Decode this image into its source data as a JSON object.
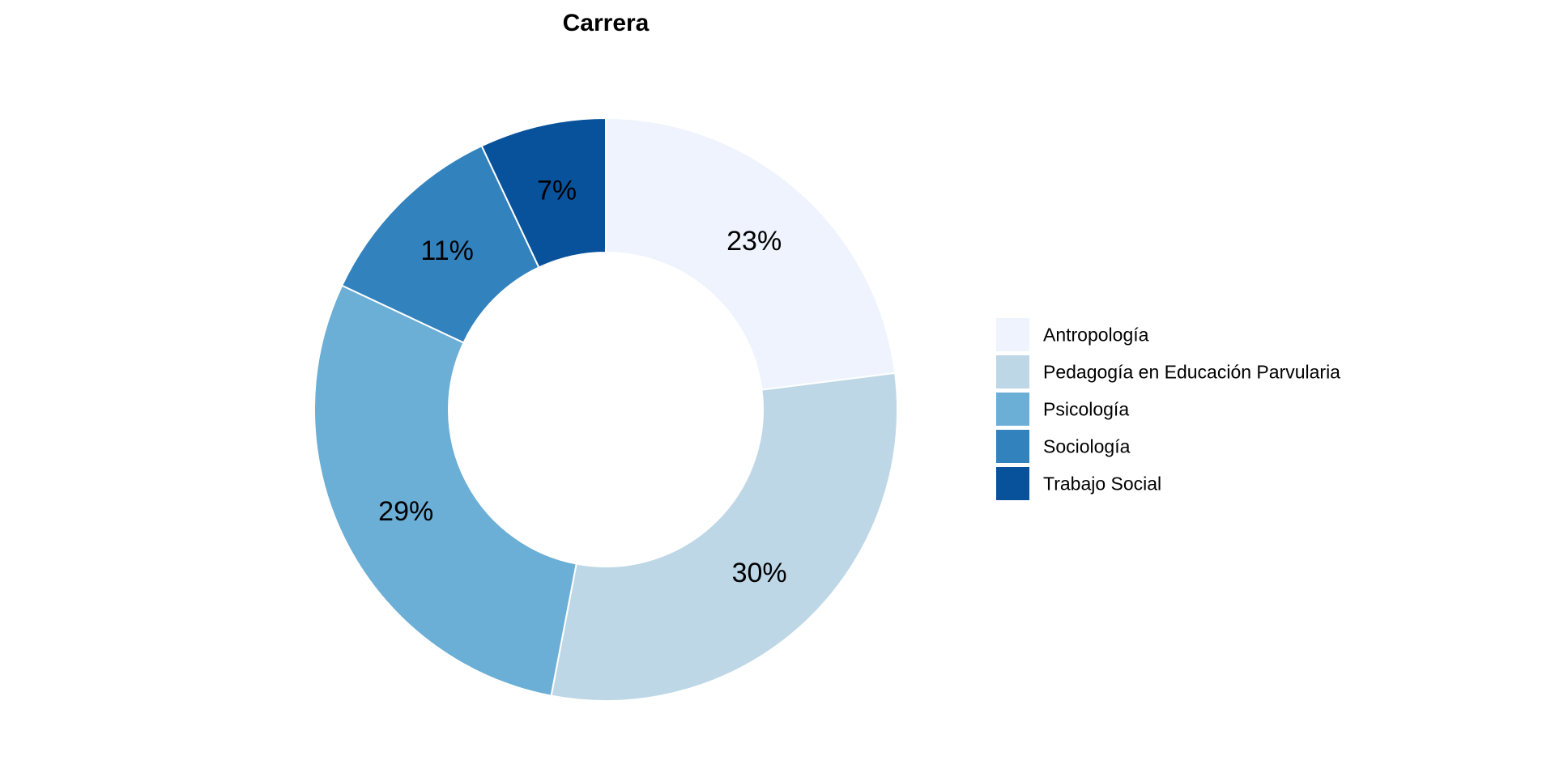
{
  "chart_data": {
    "type": "pie",
    "donut": true,
    "title": "Carrera",
    "legend_position": "right",
    "categories": [
      "Antropología",
      "Pedagogía en Educación Parvularia",
      "Psicología",
      "Sociología",
      "Trabajo Social"
    ],
    "values": [
      23,
      30,
      29,
      11,
      7
    ],
    "labels": [
      "23%",
      "30%",
      "29%",
      "11%",
      "7%"
    ],
    "colors": [
      "#EEF3FD",
      "#BED7E7",
      "#6BAED6",
      "#3282BE",
      "#08529C"
    ]
  }
}
